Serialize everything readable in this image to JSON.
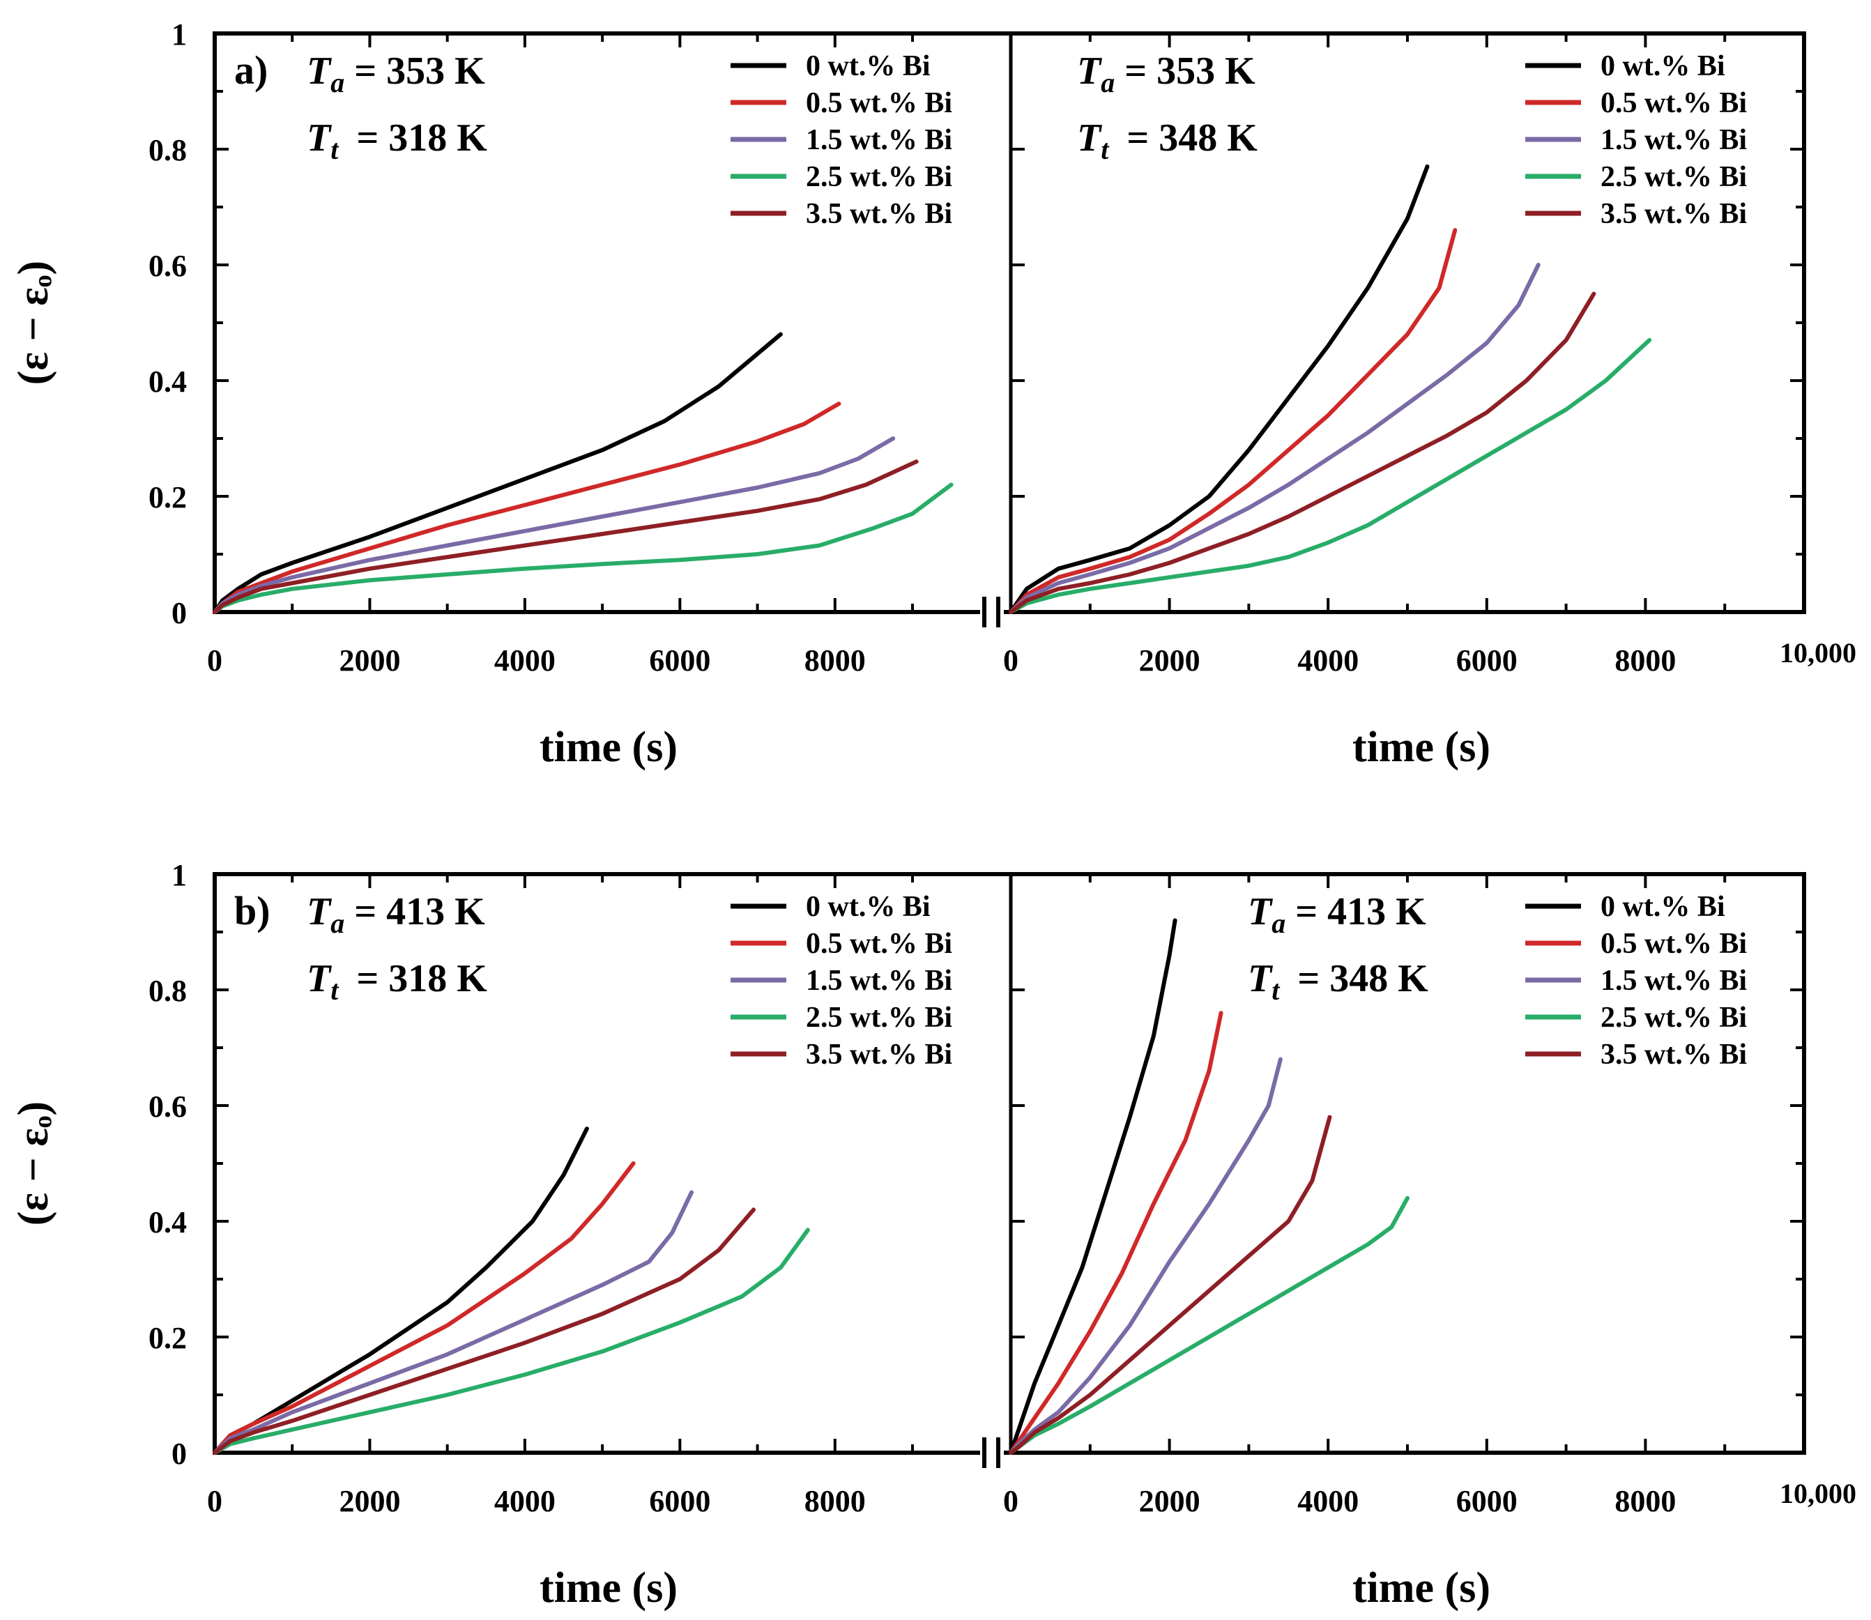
{
  "chart_data": [
    {
      "type": "line",
      "panel": "a",
      "panel_label": "a)",
      "ylabel": "(ε − εₒ)",
      "ylim": [
        0,
        1
      ],
      "y_ticks": [
        "0",
        "0.2",
        "0.4",
        "0.6",
        "0.8",
        "1"
      ],
      "subplots": [
        {
          "annotation": {
            "Ta": "= 353 K",
            "Tt": "= 318 K"
          },
          "xlabel": "time (s)",
          "xlim": [
            0,
            9800
          ],
          "x_ticks": [
            "0",
            "2000",
            "4000",
            "6000",
            "8000"
          ],
          "series": [
            {
              "name": "0 wt.% Bi",
              "x": [
                0,
                100,
                300,
                600,
                1000,
                2000,
                3000,
                4000,
                5000,
                5800,
                6500,
                7300
              ],
              "y": [
                0,
                0.02,
                0.04,
                0.065,
                0.085,
                0.13,
                0.18,
                0.23,
                0.28,
                0.33,
                0.39,
                0.48
              ]
            },
            {
              "name": "0.5 wt.% Bi",
              "x": [
                0,
                100,
                300,
                600,
                1000,
                2000,
                3000,
                4000,
                5000,
                6000,
                7000,
                7600,
                8050
              ],
              "y": [
                0,
                0.015,
                0.035,
                0.05,
                0.07,
                0.11,
                0.15,
                0.185,
                0.22,
                0.255,
                0.295,
                0.325,
                0.36
              ]
            },
            {
              "name": "1.5 wt.% Bi",
              "x": [
                0,
                100,
                300,
                600,
                1000,
                2000,
                3000,
                4000,
                5000,
                6000,
                7000,
                7800,
                8300,
                8750
              ],
              "y": [
                0,
                0.015,
                0.03,
                0.045,
                0.06,
                0.09,
                0.115,
                0.14,
                0.165,
                0.19,
                0.215,
                0.24,
                0.265,
                0.3
              ]
            },
            {
              "name": "2.5 wt.% Bi",
              "x": [
                0,
                100,
                300,
                600,
                1000,
                2000,
                3000,
                4000,
                5000,
                6000,
                7000,
                7800,
                8500,
                9000,
                9500
              ],
              "y": [
                0,
                0.01,
                0.02,
                0.03,
                0.04,
                0.055,
                0.065,
                0.075,
                0.083,
                0.09,
                0.1,
                0.115,
                0.145,
                0.17,
                0.22
              ]
            },
            {
              "name": "3.5 wt.% Bi",
              "x": [
                0,
                100,
                300,
                600,
                1000,
                2000,
                3000,
                4000,
                5000,
                6000,
                7000,
                7800,
                8400,
                9050
              ],
              "y": [
                0,
                0.012,
                0.025,
                0.04,
                0.05,
                0.075,
                0.095,
                0.115,
                0.135,
                0.155,
                0.175,
                0.195,
                0.22,
                0.26
              ]
            }
          ]
        },
        {
          "annotation": {
            "Ta": "= 353 K",
            "Tt": "= 348 K"
          },
          "xlabel": "time (s)",
          "xlim": [
            0,
            10000
          ],
          "x_ticks": [
            "0",
            "2000",
            "4000",
            "6000",
            "8000",
            "10,000"
          ],
          "series": [
            {
              "name": "0 wt.% Bi",
              "x": [
                0,
                200,
                600,
                1000,
                1500,
                2000,
                2500,
                3000,
                3500,
                4000,
                4500,
                5000,
                5250
              ],
              "y": [
                0,
                0.04,
                0.075,
                0.09,
                0.11,
                0.15,
                0.2,
                0.28,
                0.37,
                0.46,
                0.56,
                0.68,
                0.77
              ]
            },
            {
              "name": "0.5 wt.% Bi",
              "x": [
                0,
                200,
                600,
                1000,
                1500,
                2000,
                2500,
                3000,
                3500,
                4000,
                4500,
                5000,
                5400,
                5600
              ],
              "y": [
                0,
                0.03,
                0.06,
                0.075,
                0.095,
                0.125,
                0.17,
                0.22,
                0.28,
                0.34,
                0.41,
                0.48,
                0.56,
                0.66
              ]
            },
            {
              "name": "1.5 wt.% Bi",
              "x": [
                0,
                200,
                600,
                1000,
                1500,
                2000,
                2500,
                3000,
                3500,
                4000,
                4500,
                5000,
                5500,
                6000,
                6400,
                6650
              ],
              "y": [
                0,
                0.025,
                0.05,
                0.065,
                0.085,
                0.11,
                0.145,
                0.18,
                0.22,
                0.265,
                0.31,
                0.36,
                0.41,
                0.465,
                0.53,
                0.6
              ]
            },
            {
              "name": "2.5 wt.% Bi",
              "x": [
                0,
                200,
                600,
                1000,
                1500,
                2000,
                2500,
                3000,
                3500,
                4000,
                4500,
                5000,
                5500,
                6000,
                6500,
                7000,
                7500,
                8050
              ],
              "y": [
                0,
                0.015,
                0.03,
                0.04,
                0.05,
                0.06,
                0.07,
                0.08,
                0.095,
                0.12,
                0.15,
                0.19,
                0.23,
                0.27,
                0.31,
                0.35,
                0.4,
                0.47
              ]
            },
            {
              "name": "3.5 wt.% Bi",
              "x": [
                0,
                200,
                600,
                1000,
                1500,
                2000,
                2500,
                3000,
                3500,
                4000,
                4500,
                5000,
                5500,
                6000,
                6500,
                7000,
                7350
              ],
              "y": [
                0,
                0.02,
                0.04,
                0.05,
                0.065,
                0.085,
                0.11,
                0.135,
                0.165,
                0.2,
                0.235,
                0.27,
                0.305,
                0.345,
                0.4,
                0.47,
                0.55
              ]
            }
          ]
        }
      ]
    },
    {
      "type": "line",
      "panel": "b",
      "panel_label": "b)",
      "ylabel": "(ε − εₒ)",
      "ylim": [
        0,
        1
      ],
      "y_ticks": [
        "0",
        "0.2",
        "0.4",
        "0.6",
        "0.8",
        "1"
      ],
      "subplots": [
        {
          "annotation": {
            "Ta": "= 413 K",
            "Tt": "= 318 K"
          },
          "xlabel": "time (s)",
          "xlim": [
            0,
            9800
          ],
          "x_ticks": [
            "0",
            "2000",
            "4000",
            "6000",
            "8000"
          ],
          "series": [
            {
              "name": "0 wt.% Bi",
              "x": [
                0,
                200,
                500,
                1000,
                2000,
                3000,
                3500,
                4100,
                4500,
                4800
              ],
              "y": [
                0,
                0.03,
                0.05,
                0.09,
                0.17,
                0.26,
                0.32,
                0.4,
                0.48,
                0.56
              ]
            },
            {
              "name": "0.5 wt.% Bi",
              "x": [
                0,
                200,
                500,
                1000,
                2000,
                3000,
                4000,
                4600,
                5000,
                5400
              ],
              "y": [
                0,
                0.03,
                0.05,
                0.08,
                0.15,
                0.22,
                0.31,
                0.37,
                0.43,
                0.5
              ]
            },
            {
              "name": "1.5 wt.% Bi",
              "x": [
                0,
                200,
                500,
                1000,
                2000,
                3000,
                4000,
                5000,
                5600,
                5900,
                6150
              ],
              "y": [
                0,
                0.025,
                0.04,
                0.07,
                0.12,
                0.17,
                0.23,
                0.29,
                0.33,
                0.38,
                0.45
              ]
            },
            {
              "name": "2.5 wt.% Bi",
              "x": [
                0,
                200,
                500,
                1000,
                2000,
                3000,
                4000,
                5000,
                6000,
                6800,
                7300,
                7650
              ],
              "y": [
                0,
                0.015,
                0.025,
                0.04,
                0.07,
                0.1,
                0.135,
                0.175,
                0.225,
                0.27,
                0.32,
                0.385
              ]
            },
            {
              "name": "3.5 wt.% Bi",
              "x": [
                0,
                200,
                500,
                1000,
                2000,
                3000,
                4000,
                5000,
                6000,
                6500,
                6950
              ],
              "y": [
                0,
                0.02,
                0.035,
                0.055,
                0.1,
                0.145,
                0.19,
                0.24,
                0.3,
                0.35,
                0.42
              ]
            }
          ]
        },
        {
          "annotation": {
            "Ta": "= 413 K",
            "Tt": "= 348 K"
          },
          "xlabel": "time (s)",
          "xlim": [
            0,
            10000
          ],
          "x_ticks": [
            "0",
            "2000",
            "4000",
            "6000",
            "8000",
            "10,000"
          ],
          "series": [
            {
              "name": "0 wt.% Bi",
              "x": [
                0,
                100,
                300,
                600,
                900,
                1200,
                1500,
                1800,
                2000,
                2070
              ],
              "y": [
                0,
                0.04,
                0.12,
                0.22,
                0.32,
                0.45,
                0.58,
                0.72,
                0.86,
                0.92
              ]
            },
            {
              "name": "0.5 wt.% Bi",
              "x": [
                0,
                100,
                300,
                600,
                1000,
                1400,
                1800,
                2200,
                2500,
                2650
              ],
              "y": [
                0,
                0.02,
                0.06,
                0.12,
                0.21,
                0.31,
                0.43,
                0.54,
                0.66,
                0.76
              ]
            },
            {
              "name": "1.5 wt.% Bi",
              "x": [
                0,
                100,
                300,
                600,
                1000,
                1500,
                2000,
                2500,
                3000,
                3250,
                3400
              ],
              "y": [
                0,
                0.015,
                0.04,
                0.07,
                0.13,
                0.22,
                0.33,
                0.43,
                0.54,
                0.6,
                0.68
              ]
            },
            {
              "name": "2.5 wt.% Bi",
              "x": [
                0,
                100,
                300,
                600,
                1000,
                1500,
                2000,
                2500,
                3000,
                3500,
                4000,
                4500,
                4800,
                5000
              ],
              "y": [
                0,
                0.01,
                0.03,
                0.05,
                0.08,
                0.12,
                0.16,
                0.2,
                0.24,
                0.28,
                0.32,
                0.36,
                0.39,
                0.44
              ]
            },
            {
              "name": "3.5 wt.% Bi",
              "x": [
                0,
                100,
                300,
                600,
                1000,
                1500,
                2000,
                2500,
                3000,
                3500,
                3800,
                4020
              ],
              "y": [
                0,
                0.01,
                0.035,
                0.06,
                0.1,
                0.16,
                0.22,
                0.28,
                0.34,
                0.4,
                0.47,
                0.58
              ]
            }
          ]
        }
      ]
    }
  ],
  "colors": {
    "0 wt.% Bi": "#000000",
    "0.5 wt.% Bi": "#d02828",
    "1.5 wt.% Bi": "#7a6aa6",
    "2.5 wt.% Bi": "#28ad68",
    "3.5 wt.% Bi": "#8e1f24",
    "axis": "#000000"
  }
}
